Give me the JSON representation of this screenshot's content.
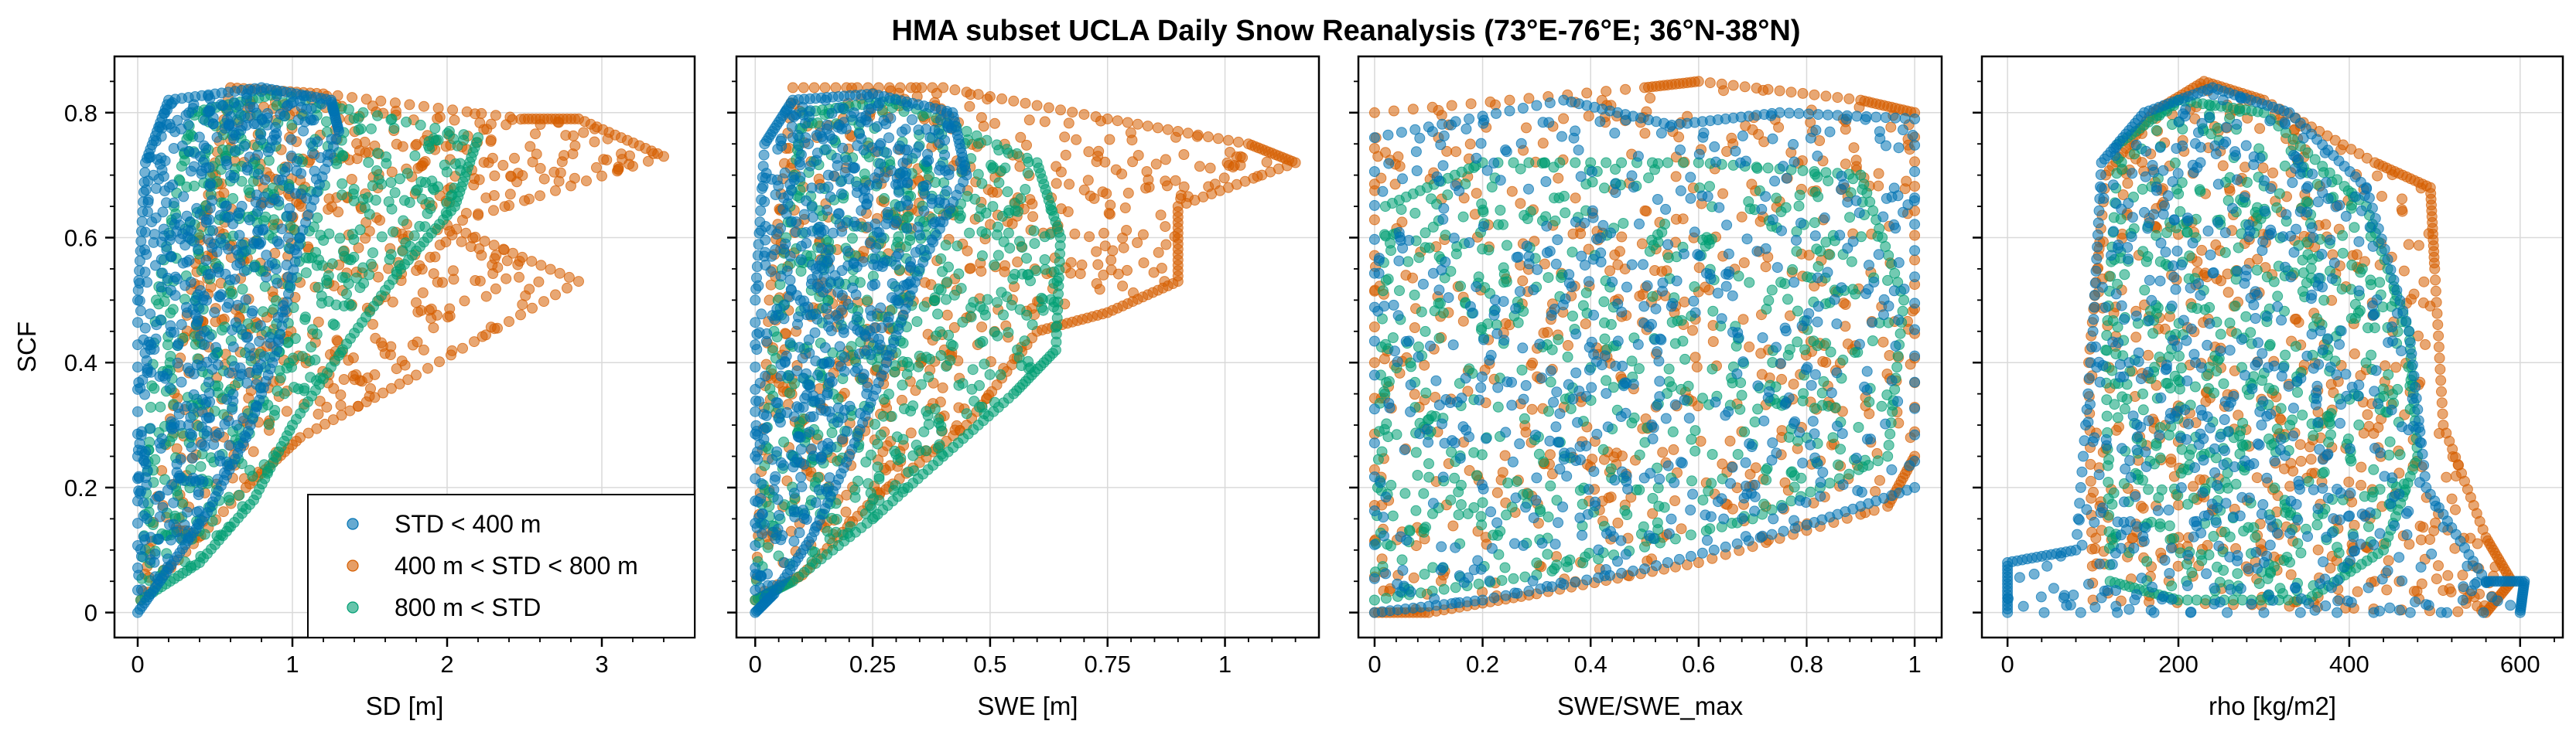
{
  "chart_data": {
    "type": "scatter",
    "title": "HMA subset UCLA Daily Snow Reanalysis (73°E-76°E; 36°N-38°N)",
    "ylabel": "SCF",
    "ylim": [
      -0.04,
      0.89
    ],
    "yticks": [
      0,
      0.2,
      0.4,
      0.6,
      0.8
    ],
    "ytick_labels": [
      "0",
      "0.2",
      "0.4",
      "0.6",
      "0.8"
    ],
    "grid": true,
    "legend": {
      "location": "lower-right of first panel",
      "entries": [
        {
          "label": "STD < 400 m",
          "color": "#0072B2"
        },
        {
          "label": "400 m < STD < 800 m",
          "color": "#D55E00"
        },
        {
          "label": "800 m < STD",
          "color": "#009E73"
        }
      ]
    },
    "panels": [
      {
        "xlabel": "SD [m]",
        "xlim": [
          -0.15,
          3.6
        ],
        "xticks": [
          0,
          1,
          2,
          3
        ],
        "xtick_labels": [
          "0",
          "1",
          "2",
          "3"
        ],
        "series": [
          {
            "name": "400 m < STD < 800 m",
            "color": "#D55E00",
            "shape": [
              [
                0.02,
                0.02
              ],
              [
                0.4,
                0.6
              ],
              [
                0.6,
                0.84
              ],
              [
                1.2,
                0.83
              ],
              [
                2.5,
                0.79
              ],
              [
                2.85,
                0.79
              ],
              [
                3.4,
                0.73
              ],
              [
                2.0,
                0.62
              ],
              [
                2.85,
                0.53
              ],
              [
                1.8,
                0.38
              ],
              [
                1.05,
                0.28
              ],
              [
                0.7,
                0.2
              ]
            ]
          },
          {
            "name": "800 m < STD",
            "color": "#009E73",
            "shape": [
              [
                0.02,
                0.02
              ],
              [
                0.12,
                0.5
              ],
              [
                0.35,
                0.8
              ],
              [
                0.9,
                0.83
              ],
              [
                2.2,
                0.76
              ],
              [
                2.05,
                0.65
              ],
              [
                1.7,
                0.55
              ],
              [
                1.35,
                0.43
              ],
              [
                1.0,
                0.3
              ],
              [
                0.75,
                0.18
              ],
              [
                0.4,
                0.08
              ]
            ]
          },
          {
            "name": "STD < 400 m",
            "color": "#0072B2",
            "shape": [
              [
                0.0,
                0.0
              ],
              [
                0.0,
                0.5
              ],
              [
                0.05,
                0.72
              ],
              [
                0.2,
                0.82
              ],
              [
                0.8,
                0.84
              ],
              [
                1.25,
                0.82
              ],
              [
                1.3,
                0.77
              ],
              [
                1.05,
                0.6
              ],
              [
                0.9,
                0.42
              ],
              [
                0.7,
                0.28
              ],
              [
                0.45,
                0.16
              ],
              [
                0.2,
                0.07
              ]
            ]
          }
        ]
      },
      {
        "xlabel": "SWE [m]",
        "xlim": [
          -0.04,
          1.2
        ],
        "xticks": [
          0,
          0.25,
          0.5,
          0.75,
          1
        ],
        "xtick_labels": [
          "0",
          "0.25",
          "0.5",
          "0.75",
          "1"
        ],
        "series": [
          {
            "name": "400 m < STD < 800 m",
            "color": "#D55E00",
            "shape": [
              [
                0.0,
                0.02
              ],
              [
                0.03,
                0.5
              ],
              [
                0.08,
                0.84
              ],
              [
                0.4,
                0.84
              ],
              [
                0.75,
                0.79
              ],
              [
                1.05,
                0.75
              ],
              [
                1.15,
                0.72
              ],
              [
                0.9,
                0.65
              ],
              [
                0.9,
                0.53
              ],
              [
                0.75,
                0.48
              ],
              [
                0.6,
                0.45
              ],
              [
                0.45,
                0.3
              ],
              [
                0.25,
                0.18
              ],
              [
                0.1,
                0.06
              ]
            ]
          },
          {
            "name": "800 m < STD",
            "color": "#009E73",
            "shape": [
              [
                0.0,
                0.02
              ],
              [
                0.04,
                0.45
              ],
              [
                0.1,
                0.8
              ],
              [
                0.3,
                0.82
              ],
              [
                0.6,
                0.72
              ],
              [
                0.65,
                0.6
              ],
              [
                0.64,
                0.42
              ],
              [
                0.55,
                0.35
              ],
              [
                0.4,
                0.25
              ],
              [
                0.25,
                0.15
              ],
              [
                0.08,
                0.05
              ]
            ]
          },
          {
            "name": "STD < 400 m",
            "color": "#0072B2",
            "shape": [
              [
                0.0,
                0.0
              ],
              [
                0.0,
                0.5
              ],
              [
                0.02,
                0.75
              ],
              [
                0.08,
                0.82
              ],
              [
                0.25,
                0.83
              ],
              [
                0.42,
                0.8
              ],
              [
                0.45,
                0.7
              ],
              [
                0.35,
                0.55
              ],
              [
                0.28,
                0.4
              ],
              [
                0.2,
                0.25
              ],
              [
                0.12,
                0.12
              ],
              [
                0.04,
                0.03
              ]
            ]
          }
        ]
      },
      {
        "xlabel": "SWE/SWE_max",
        "xlim": [
          -0.03,
          1.05
        ],
        "xticks": [
          0,
          0.2,
          0.4,
          0.6,
          0.8,
          1
        ],
        "xtick_labels": [
          "0",
          "0.2",
          "0.4",
          "0.6",
          "0.8",
          "1"
        ],
        "series": [
          {
            "name": "400 m < STD < 800 m",
            "color": "#D55E00",
            "shape": [
              [
                0.0,
                0.0
              ],
              [
                0.0,
                0.8
              ],
              [
                0.5,
                0.84
              ],
              [
                0.6,
                0.85
              ],
              [
                0.9,
                0.82
              ],
              [
                1.0,
                0.8
              ],
              [
                1.0,
                0.25
              ],
              [
                0.95,
                0.17
              ],
              [
                0.6,
                0.08
              ],
              [
                0.3,
                0.03
              ],
              [
                0.1,
                0.0
              ]
            ]
          },
          {
            "name": "800 m < STD",
            "color": "#009E73",
            "shape": [
              [
                0.0,
                0.02
              ],
              [
                0.02,
                0.65
              ],
              [
                0.2,
                0.72
              ],
              [
                0.6,
                0.72
              ],
              [
                0.9,
                0.7
              ],
              [
                0.98,
                0.5
              ],
              [
                0.95,
                0.25
              ],
              [
                0.7,
                0.15
              ],
              [
                0.3,
                0.06
              ]
            ]
          },
          {
            "name": "STD < 400 m",
            "color": "#0072B2",
            "shape": [
              [
                0.0,
                0.0
              ],
              [
                0.0,
                0.76
              ],
              [
                0.35,
                0.82
              ],
              [
                0.55,
                0.78
              ],
              [
                0.75,
                0.8
              ],
              [
                1.0,
                0.79
              ],
              [
                1.0,
                0.2
              ],
              [
                0.8,
                0.14
              ],
              [
                0.5,
                0.07
              ],
              [
                0.2,
                0.02
              ]
            ]
          }
        ]
      },
      {
        "xlabel": "rho [kg/m2]",
        "xlim": [
          -30,
          650
        ],
        "xticks": [
          0,
          200,
          400,
          600
        ],
        "xtick_labels": [
          "0",
          "200",
          "400",
          "600"
        ],
        "series": [
          {
            "name": "400 m < STD < 800 m",
            "color": "#D55E00",
            "shape": [
              [
                100,
                0.02
              ],
              [
                95,
                0.4
              ],
              [
                115,
                0.7
              ],
              [
                170,
                0.8
              ],
              [
                230,
                0.85
              ],
              [
                300,
                0.82
              ],
              [
                430,
                0.72
              ],
              [
                495,
                0.68
              ],
              [
                500,
                0.55
              ],
              [
                510,
                0.3
              ],
              [
                560,
                0.12
              ],
              [
                590,
                0.05
              ],
              [
                560,
                0.0
              ]
            ]
          },
          {
            "name": "800 m < STD",
            "color": "#009E73",
            "shape": [
              [
                120,
                0.05
              ],
              [
                115,
                0.42
              ],
              [
                130,
                0.75
              ],
              [
                200,
                0.82
              ],
              [
                300,
                0.8
              ],
              [
                420,
                0.65
              ],
              [
                470,
                0.45
              ],
              [
                480,
                0.25
              ],
              [
                440,
                0.1
              ],
              [
                350,
                0.02
              ],
              [
                200,
                0.02
              ]
            ]
          },
          {
            "name": "STD < 400 m",
            "color": "#0072B2",
            "shape": [
              [
                0,
                0.0
              ],
              [
                0,
                0.08
              ],
              [
                80,
                0.1
              ],
              [
                100,
                0.45
              ],
              [
                110,
                0.72
              ],
              [
                160,
                0.8
              ],
              [
                240,
                0.84
              ],
              [
                330,
                0.8
              ],
              [
                420,
                0.68
              ],
              [
                470,
                0.45
              ],
              [
                490,
                0.2
              ],
              [
                560,
                0.05
              ],
              [
                605,
                0.05
              ],
              [
                600,
                0.0
              ]
            ]
          }
        ]
      }
    ]
  }
}
